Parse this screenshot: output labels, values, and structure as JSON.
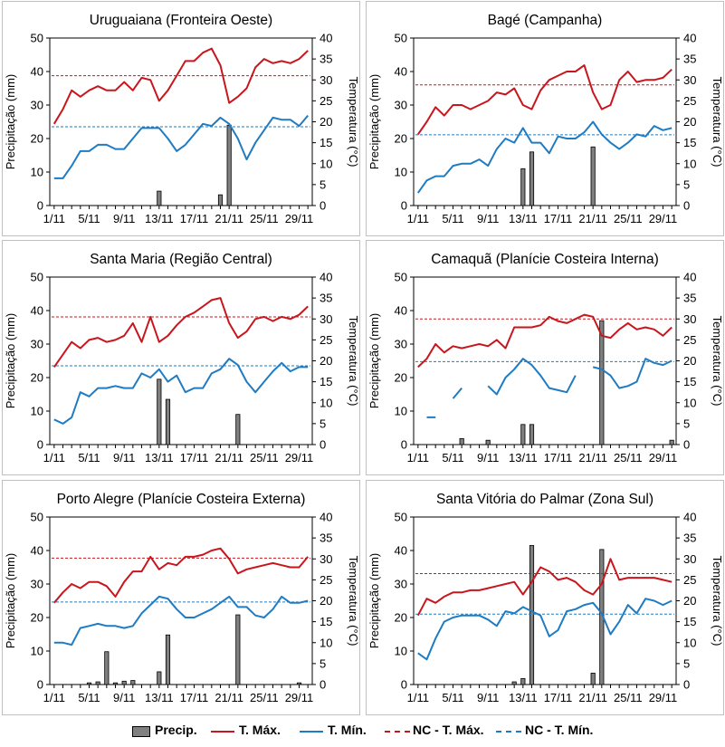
{
  "chart_data": [
    {
      "type": "bar+line",
      "title": "Uruguaiana (Fronteira Oeste)",
      "ylabel_left": "Precipitação (mm)",
      "ylabel_right": "Temperatura (°C)",
      "ylim_left": [
        0,
        50
      ],
      "ylim_right": [
        0,
        40
      ],
      "yticks_left": [
        "0",
        "10",
        "20",
        "30",
        "40",
        "50"
      ],
      "yticks_right": [
        "0",
        "5",
        "10",
        "15",
        "20",
        "25",
        "30",
        "35",
        "40"
      ],
      "x": [
        1,
        2,
        3,
        4,
        5,
        6,
        7,
        8,
        9,
        10,
        11,
        12,
        13,
        14,
        15,
        16,
        17,
        18,
        19,
        20,
        21,
        22,
        23,
        24,
        25,
        26,
        27,
        28,
        29,
        30
      ],
      "xticks": [
        "1/11",
        "5/11",
        "9/11",
        "13/11",
        "17/11",
        "21/11",
        "25/11",
        "29/11"
      ],
      "precip": [
        0,
        0,
        0,
        0,
        0,
        0,
        0,
        0,
        0,
        0,
        0,
        0,
        4.3,
        0,
        0,
        0,
        0,
        0,
        0,
        3.2,
        24,
        0,
        0,
        0,
        0,
        0,
        0,
        0,
        0,
        0
      ],
      "tmax": [
        19.5,
        23,
        27.5,
        26,
        27.5,
        28.5,
        27.5,
        27.5,
        29.5,
        27.5,
        30.5,
        30,
        25,
        27.5,
        31,
        34.5,
        34.5,
        36.5,
        37.5,
        33.5,
        24.5,
        26,
        28,
        33,
        35,
        34,
        34.5,
        34,
        35,
        37
      ],
      "tmin": [
        6.5,
        6.5,
        9.5,
        13,
        13,
        14.5,
        14.5,
        13.5,
        13.5,
        16,
        18.5,
        18.5,
        18.5,
        16,
        13,
        14.5,
        17,
        19.5,
        19,
        21,
        19.5,
        16,
        11,
        15,
        18,
        21,
        20.5,
        20.5,
        19,
        21.5
      ],
      "nc_tmax": 31,
      "nc_tmin": 18.8
    },
    {
      "type": "bar+line",
      "title": "Bagé (Campanha)",
      "ylabel_left": "Precipitação (mm)",
      "ylabel_right": "Temperatura (°C)",
      "ylim_left": [
        0,
        50
      ],
      "ylim_right": [
        0,
        40
      ],
      "yticks_left": [
        "0",
        "10",
        "20",
        "30",
        "40",
        "50"
      ],
      "yticks_right": [
        "0",
        "5",
        "10",
        "15",
        "20",
        "25",
        "30",
        "35",
        "40"
      ],
      "x": [
        1,
        2,
        3,
        4,
        5,
        6,
        7,
        8,
        9,
        10,
        11,
        12,
        13,
        14,
        15,
        16,
        17,
        18,
        19,
        20,
        21,
        22,
        23,
        24,
        25,
        26,
        27,
        28,
        29,
        30
      ],
      "xticks": [
        "1/11",
        "5/11",
        "9/11",
        "13/11",
        "17/11",
        "21/11",
        "25/11",
        "29/11"
      ],
      "precip": [
        0,
        0,
        0,
        0,
        0,
        0,
        0,
        0,
        0,
        0,
        0,
        0,
        11,
        16,
        0,
        0,
        0,
        0,
        0,
        0,
        17.5,
        0,
        0,
        0,
        0,
        0,
        0,
        0,
        0,
        0
      ],
      "tmax": [
        17,
        20,
        23.5,
        21.5,
        24,
        24,
        23,
        24,
        25,
        27,
        26.5,
        28,
        24,
        23,
        27.5,
        30,
        31,
        32,
        32,
        33.5,
        27,
        23,
        24,
        30,
        32,
        29.5,
        30,
        30,
        30.5,
        32.5
      ],
      "tmin": [
        3,
        6,
        7,
        7,
        9.5,
        10,
        10,
        11,
        9.5,
        13.5,
        16,
        15,
        18.5,
        15,
        15,
        12.5,
        16.5,
        16,
        16,
        17.5,
        20,
        17,
        15,
        13.5,
        15,
        17,
        16.5,
        19,
        18,
        18.5
      ],
      "nc_tmax": 28.8,
      "nc_tmin": 16.9
    },
    {
      "type": "bar+line",
      "title": "Santa Maria (Região Central)",
      "ylabel_left": "Precipitação (mm)",
      "ylabel_right": "Temperatura (°C)",
      "ylim_left": [
        0,
        50
      ],
      "ylim_right": [
        0,
        40
      ],
      "yticks_left": [
        "0",
        "10",
        "20",
        "30",
        "40",
        "50"
      ],
      "yticks_right": [
        "0",
        "5",
        "10",
        "15",
        "20",
        "25",
        "30",
        "35",
        "40"
      ],
      "x": [
        1,
        2,
        3,
        4,
        5,
        6,
        7,
        8,
        9,
        10,
        11,
        12,
        13,
        14,
        15,
        16,
        17,
        18,
        19,
        20,
        21,
        22,
        23,
        24,
        25,
        26,
        27,
        28,
        29,
        30
      ],
      "xticks": [
        "1/11",
        "5/11",
        "9/11",
        "13/11",
        "17/11",
        "21/11",
        "25/11",
        "29/11"
      ],
      "precip": [
        0,
        0,
        0,
        0,
        0,
        0,
        0,
        0,
        0,
        0,
        0,
        0,
        19.5,
        13.5,
        0,
        0,
        0,
        0,
        0,
        0,
        0,
        9,
        0,
        0,
        0,
        0,
        0,
        0,
        0,
        0
      ],
      "tmax": [
        18.5,
        21.5,
        24.5,
        23,
        25,
        25.5,
        24.5,
        25,
        26,
        29,
        24.5,
        30.5,
        24.5,
        26,
        28.5,
        30.5,
        31.5,
        33,
        34.5,
        35,
        29,
        25.5,
        27,
        30,
        30.5,
        29.5,
        30.5,
        30,
        31,
        33
      ],
      "tmin": [
        6,
        5,
        6.5,
        12.5,
        11.5,
        13.5,
        13.5,
        14,
        13.5,
        13.5,
        17,
        16,
        18,
        15,
        16.5,
        12.5,
        13.5,
        13.5,
        17,
        18,
        20.5,
        19,
        15,
        12.5,
        15,
        17.5,
        19.5,
        17.5,
        18.5,
        18.5
      ],
      "nc_tmax": 30.5,
      "nc_tmin": 18.8
    },
    {
      "type": "bar+line",
      "title": "Camaquã (Planície Costeira Interna)",
      "ylabel_left": "Precipitação (mm)",
      "ylabel_right": "Temperatura (°C)",
      "ylim_left": [
        0,
        50
      ],
      "ylim_right": [
        0,
        40
      ],
      "yticks_left": [
        "0",
        "10",
        "20",
        "30",
        "40",
        "50"
      ],
      "yticks_right": [
        "0",
        "5",
        "10",
        "15",
        "20",
        "25",
        "30",
        "35",
        "40"
      ],
      "x": [
        1,
        2,
        3,
        4,
        5,
        6,
        7,
        8,
        9,
        10,
        11,
        12,
        13,
        14,
        15,
        16,
        17,
        18,
        19,
        20,
        21,
        22,
        23,
        24,
        25,
        26,
        27,
        28,
        29,
        30
      ],
      "xticks": [
        "1/11",
        "5/11",
        "9/11",
        "13/11",
        "17/11",
        "21/11",
        "25/11",
        "29/11"
      ],
      "precip": [
        0,
        0,
        0,
        0,
        0,
        1.8,
        0,
        0,
        1.3,
        0,
        0,
        0,
        6,
        6,
        0,
        0,
        0,
        0,
        0,
        0,
        0,
        37,
        0,
        0,
        0,
        0,
        0,
        0,
        0,
        1.3
      ],
      "tmax": [
        18.5,
        20.5,
        24,
        22,
        23.5,
        23,
        23.5,
        24,
        23.5,
        25,
        23,
        28,
        28,
        28,
        28.5,
        30.5,
        29.5,
        29,
        30,
        31,
        30.5,
        26,
        25.5,
        27.5,
        29,
        27.5,
        28,
        27.5,
        26,
        28
      ],
      "tmin": [
        null,
        6.5,
        6.5,
        null,
        11,
        13.5,
        null,
        null,
        14,
        12,
        16,
        18,
        20.5,
        19,
        16.5,
        13.5,
        13,
        12.5,
        16.5,
        null,
        18.5,
        18,
        16.5,
        13.5,
        14,
        15,
        20.5,
        19.5,
        19,
        20
      ],
      "nc_tmax": 30,
      "nc_tmin": 19.8
    },
    {
      "type": "bar+line",
      "title": "Porto Alegre (Planície Costeira Externa)",
      "ylabel_left": "Precipitação (mm)",
      "ylabel_right": "Temperatura (°C)",
      "ylim_left": [
        0,
        50
      ],
      "ylim_right": [
        0,
        40
      ],
      "yticks_left": [
        "0",
        "10",
        "20",
        "30",
        "40",
        "50"
      ],
      "yticks_right": [
        "0",
        "5",
        "10",
        "15",
        "20",
        "25",
        "30",
        "35",
        "40"
      ],
      "x": [
        1,
        2,
        3,
        4,
        5,
        6,
        7,
        8,
        9,
        10,
        11,
        12,
        13,
        14,
        15,
        16,
        17,
        18,
        19,
        20,
        21,
        22,
        23,
        24,
        25,
        26,
        27,
        28,
        29,
        30
      ],
      "xticks": [
        "1/11",
        "5/11",
        "9/11",
        "13/11",
        "17/11",
        "21/11",
        "25/11",
        "29/11"
      ],
      "precip": [
        0,
        0,
        0,
        0,
        0.5,
        0.8,
        9.8,
        0.5,
        1,
        1.2,
        0,
        0,
        3.8,
        14.8,
        0,
        0,
        0,
        0,
        0,
        0,
        0,
        20.8,
        0,
        0,
        0,
        0,
        0,
        0,
        0.5,
        0
      ],
      "tmax": [
        19.5,
        22,
        24,
        23,
        24.5,
        24.5,
        23.5,
        21,
        24.5,
        27,
        27,
        30.5,
        27.5,
        29,
        28.5,
        30.5,
        30.5,
        31,
        32,
        32.5,
        30,
        26.5,
        27.5,
        28,
        28.5,
        29,
        28.5,
        28,
        28,
        30.5
      ],
      "tmin": [
        10,
        10,
        9.5,
        13.5,
        14,
        14.5,
        14,
        14,
        13.5,
        14,
        17,
        19,
        21,
        20.5,
        18,
        16,
        16,
        17,
        18,
        19.5,
        21,
        18.5,
        18.5,
        16.5,
        16,
        18,
        21,
        19.5,
        19.5,
        20
      ],
      "nc_tmax": 30.2,
      "nc_tmin": 19.7
    },
    {
      "type": "bar+line",
      "title": "Santa Vitória do Palmar (Zona Sul)",
      "ylabel_left": "Precipitação (mm)",
      "ylabel_right": "Temperatura (°C)",
      "ylim_left": [
        0,
        50
      ],
      "ylim_right": [
        0,
        40
      ],
      "yticks_left": [
        "0",
        "10",
        "20",
        "30",
        "40",
        "50"
      ],
      "yticks_right": [
        "0",
        "5",
        "10",
        "15",
        "20",
        "25",
        "30",
        "35",
        "40"
      ],
      "x": [
        1,
        2,
        3,
        4,
        5,
        6,
        7,
        8,
        9,
        10,
        11,
        12,
        13,
        14,
        15,
        16,
        17,
        18,
        19,
        20,
        21,
        22,
        23,
        24,
        25,
        26,
        27,
        28,
        29,
        30
      ],
      "xticks": [
        "1/11",
        "5/11",
        "9/11",
        "13/11",
        "17/11",
        "21/11",
        "25/11",
        "29/11"
      ],
      "precip": [
        0,
        0,
        0,
        0,
        0,
        0,
        0,
        0,
        0,
        0,
        0,
        0.8,
        1.8,
        41.5,
        0,
        0,
        0,
        0,
        0,
        0,
        3.4,
        40.3,
        0,
        0,
        0,
        0,
        0,
        0,
        0,
        0
      ],
      "tmax": [
        16.5,
        20.5,
        19.5,
        21,
        22,
        22,
        22.5,
        22.5,
        23,
        23.5,
        24,
        24.5,
        21.5,
        24.5,
        28,
        27,
        25,
        25.5,
        24.5,
        22.5,
        21.5,
        24,
        30,
        25,
        25.5,
        25.5,
        25.5,
        25.5,
        25,
        24.5
      ],
      "tmin": [
        7.5,
        6,
        11,
        15,
        16,
        16.5,
        16.5,
        16.5,
        15.5,
        14,
        17.5,
        17,
        18.5,
        17.5,
        16.5,
        11.5,
        13,
        17.5,
        18,
        19,
        19.5,
        17,
        12,
        15,
        19,
        17,
        20.5,
        20,
        19,
        20
      ],
      "nc_tmax": 26.5,
      "nc_tmin": 16.8
    }
  ],
  "legend": {
    "precip": "Precip.",
    "tmax": "T. Máx.",
    "tmin": "T. Mín.",
    "nc_tmax": "NC - T. Máx.",
    "nc_tmin": "NC - T. Mín."
  },
  "colors": {
    "tmax": "#c8161d",
    "tmin": "#1f7bc2",
    "bar_fill": "#808080",
    "bar_stroke": "#000000",
    "frame": "#c0c0c0"
  }
}
